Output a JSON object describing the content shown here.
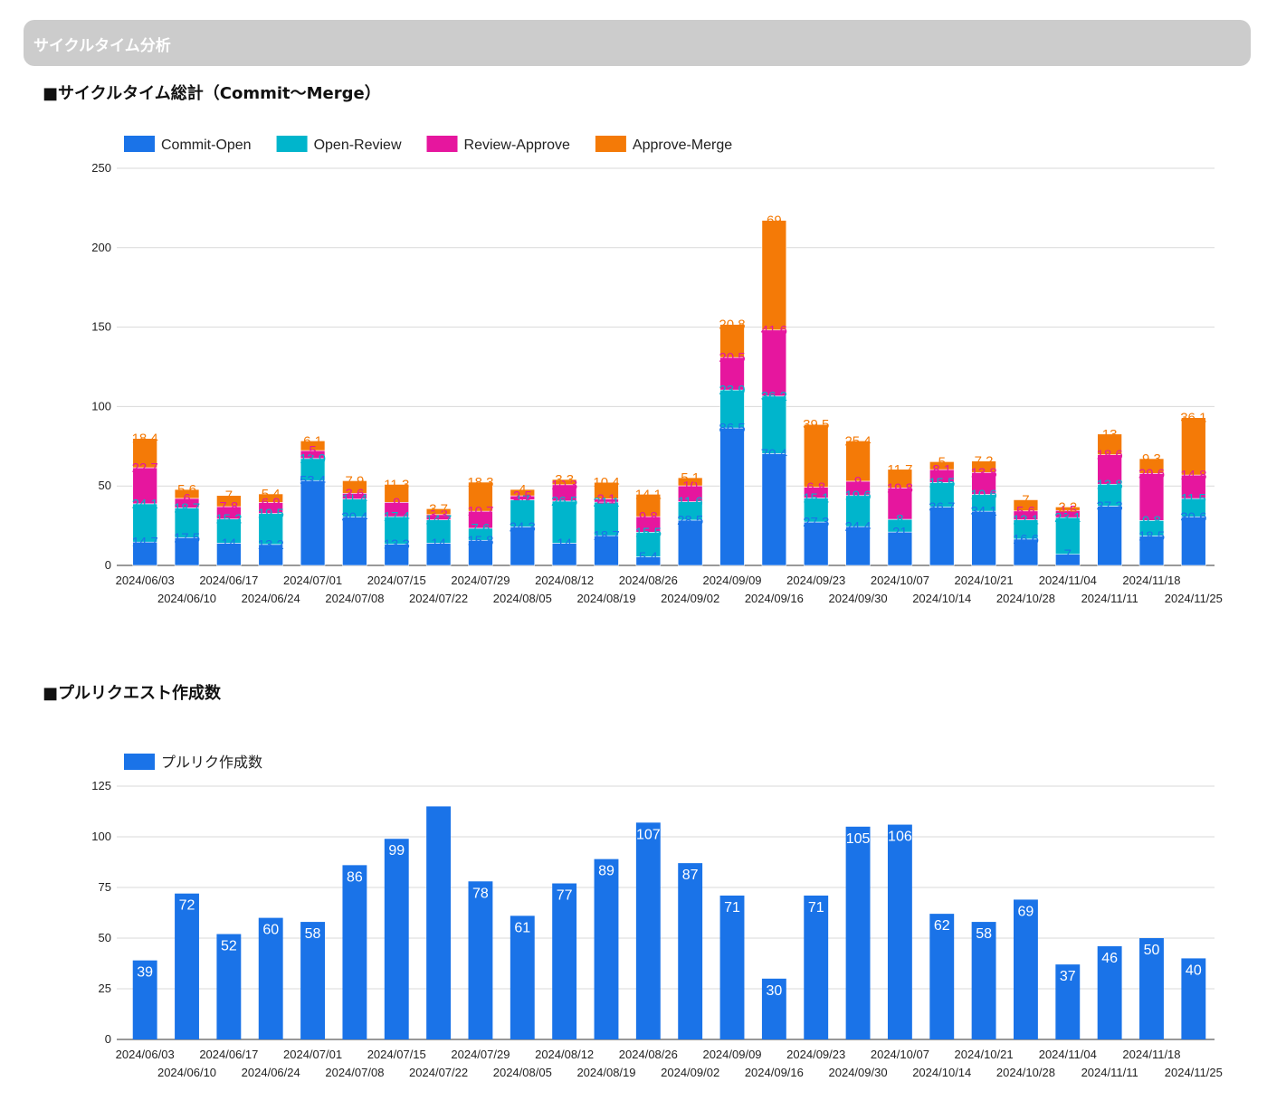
{
  "page": {
    "banner_title": "サイクルタイム分析",
    "section1_title": "■サイクルタイム総計（Commit〜Merge）",
    "section2_title": "■プルリクエスト作成数"
  },
  "colors": {
    "commit_open": "#1a73e8",
    "open_review": "#00b5cc",
    "review_approve": "#e6169e",
    "approve_merge": "#f47a07",
    "pr_bar": "#1a73e8",
    "banner": "#cccccc"
  },
  "chart_data": [
    {
      "type": "bar",
      "stacked": true,
      "categories": [
        "2024/06/03",
        "2024/06/10",
        "2024/06/17",
        "2024/06/24",
        "2024/07/01",
        "2024/07/08",
        "2024/07/15",
        "2024/07/22",
        "2024/07/29",
        "2024/08/05",
        "2024/08/12",
        "2024/08/19",
        "2024/08/26",
        "2024/09/02",
        "2024/09/09",
        "2024/09/16",
        "2024/09/23",
        "2024/09/30",
        "2024/10/07",
        "2024/10/14",
        "2024/10/21",
        "2024/10/28",
        "2024/11/04",
        "2024/11/11",
        "2024/11/18",
        "2024/11/25"
      ],
      "ylim": [
        0,
        250
      ],
      "yticks": [
        0,
        50,
        100,
        150,
        200,
        250
      ],
      "legend_position": "top-left",
      "grid": true,
      "series": [
        {
          "name": "Commit-Open",
          "color_key": "commit_open",
          "values": [
            14.7,
            17.5,
            14,
            13.2,
            53.4,
            30.4,
            13.3,
            14,
            15.8,
            24.3,
            14,
            18.7,
            5.4,
            28.5,
            86.5,
            70.4,
            27.3,
            24.4,
            21,
            36.7,
            34.1,
            16.6,
            7,
            37.3,
            18.5,
            30.6
          ]
        },
        {
          "name": "Open-Review",
          "color_key": "open_review",
          "values": [
            24.1,
            18.7,
            15.2,
            19.5,
            13.9,
            11.4,
            17.4,
            14.7,
            7.6,
            17,
            26.5,
            21.1,
            15.5,
            11.6,
            23.9,
            36.2,
            15.1,
            19.6,
            8,
            15.5,
            10.6,
            12.1,
            23.1,
            13.8,
            9.8,
            11.5
          ]
        },
        {
          "name": "Review-Approve",
          "color_key": "review_approve",
          "values": [
            22.7,
            6,
            7.8,
            6.9,
            5,
            3.6,
            9,
            3.3,
            10.7,
            2.5,
            10.3,
            2.1,
            9.8,
            10,
            20.5,
            41.6,
            6.8,
            9,
            19.8,
            8.1,
            13.8,
            5.6,
            4.5,
            18.6,
            29.6,
            14.8
          ]
        },
        {
          "name": "Approve-Merge",
          "color_key": "approve_merge",
          "values": [
            18.4,
            5.6,
            7,
            5.4,
            6.1,
            7.9,
            11.3,
            3.7,
            18.3,
            4,
            3.3,
            10.4,
            14.1,
            5.1,
            20.8,
            69,
            39.5,
            25.4,
            11.7,
            5,
            7.2,
            7,
            2.2,
            13,
            9.3,
            36.1
          ]
        }
      ]
    },
    {
      "type": "bar",
      "categories": [
        "2024/06/03",
        "2024/06/10",
        "2024/06/17",
        "2024/06/24",
        "2024/07/01",
        "2024/07/08",
        "2024/07/15",
        "2024/07/22",
        "2024/07/29",
        "2024/08/05",
        "2024/08/12",
        "2024/08/19",
        "2024/08/26",
        "2024/09/02",
        "2024/09/09",
        "2024/09/16",
        "2024/09/23",
        "2024/09/30",
        "2024/10/07",
        "2024/10/14",
        "2024/10/21",
        "2024/10/28",
        "2024/11/04",
        "2024/11/11",
        "2024/11/18",
        "2024/11/25"
      ],
      "ylim": [
        0,
        125
      ],
      "yticks": [
        0,
        25,
        50,
        75,
        100,
        125
      ],
      "legend_position": "top-left",
      "grid": true,
      "series": [
        {
          "name": "プルリク作成数",
          "color_key": "pr_bar",
          "values": [
            39,
            72,
            52,
            60,
            58,
            86,
            99,
            115,
            78,
            61,
            77,
            89,
            107,
            87,
            71,
            30,
            71,
            105,
            106,
            62,
            58,
            69,
            37,
            46,
            50,
            40
          ],
          "data_labels": [
            "39",
            "72",
            "52",
            "60",
            "58",
            "86",
            "99",
            "",
            "78",
            "61",
            "77",
            "89",
            "107",
            "87",
            "71",
            "30",
            "71",
            "105",
            "106",
            "62",
            "58",
            "69",
            "37",
            "46",
            "50",
            "40"
          ]
        }
      ]
    }
  ]
}
